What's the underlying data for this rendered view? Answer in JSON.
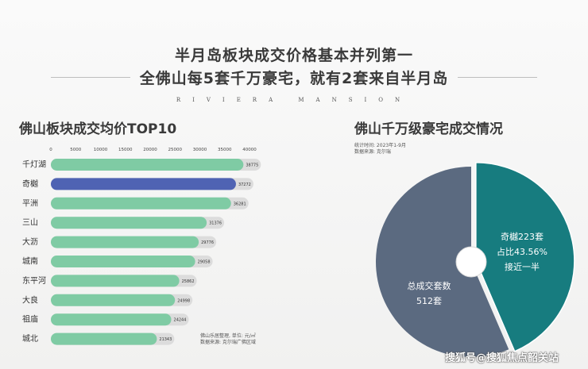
{
  "header": {
    "title_line1": "半月岛板块成交价格基本并列第一",
    "title_line2": "全佛山每5套千万豪宅，就有2套来自半月岛",
    "brand_text": "RIVIERA MANSION"
  },
  "left_panel": {
    "title": "佛山板块成交均价TOP10",
    "source_line1": "佛山乐居整理, 单位: 元/㎡",
    "source_line2": "数据来源: 克尔瑞广佛区域"
  },
  "right_panel": {
    "title": "佛山千万级豪宅成交情况",
    "stat_period": "统计时间: 2023年1-9月",
    "source": "数据来源: 克尔瑞",
    "slice_label_1": "奇樾223套",
    "slice_label_2": "占比43.56%",
    "slice_label_3": "接近一半",
    "total_label_1": "总成交套数",
    "total_label_2": "512套"
  },
  "watermark": "搜狐号@搜狐焦点韶关站",
  "chart_data": [
    {
      "type": "bar",
      "orientation": "horizontal",
      "title": "佛山板块成交均价TOP10",
      "categories": [
        "千灯湖",
        "奇樾",
        "平洲",
        "三山",
        "大沥",
        "城南",
        "东平河",
        "大良",
        "祖庙",
        "城北"
      ],
      "values": [
        38775,
        37272,
        36281,
        31376,
        29776,
        29058,
        25862,
        24998,
        24244,
        21343
      ],
      "value_labels": [
        "38775",
        "37272",
        "36281",
        "31376",
        "29776",
        "29058",
        "25862",
        "24998",
        "24244",
        "21343"
      ],
      "highlight_index": 1,
      "x_ticks": [
        "0",
        "5000",
        "10000",
        "15000",
        "20000",
        "25000",
        "30000",
        "35000",
        "40000"
      ],
      "xlim": [
        0,
        40000
      ],
      "colors": {
        "default": "#7fcba4",
        "highlight": "#4f63b3",
        "track": "#dcdcdc"
      },
      "grid": false
    },
    {
      "type": "pie",
      "title": "佛山千万级豪宅成交情况",
      "values": [
        223,
        289
      ],
      "total": 512,
      "colors": [
        "#177c7f",
        "#5b6a80"
      ],
      "donut": true
    }
  ]
}
